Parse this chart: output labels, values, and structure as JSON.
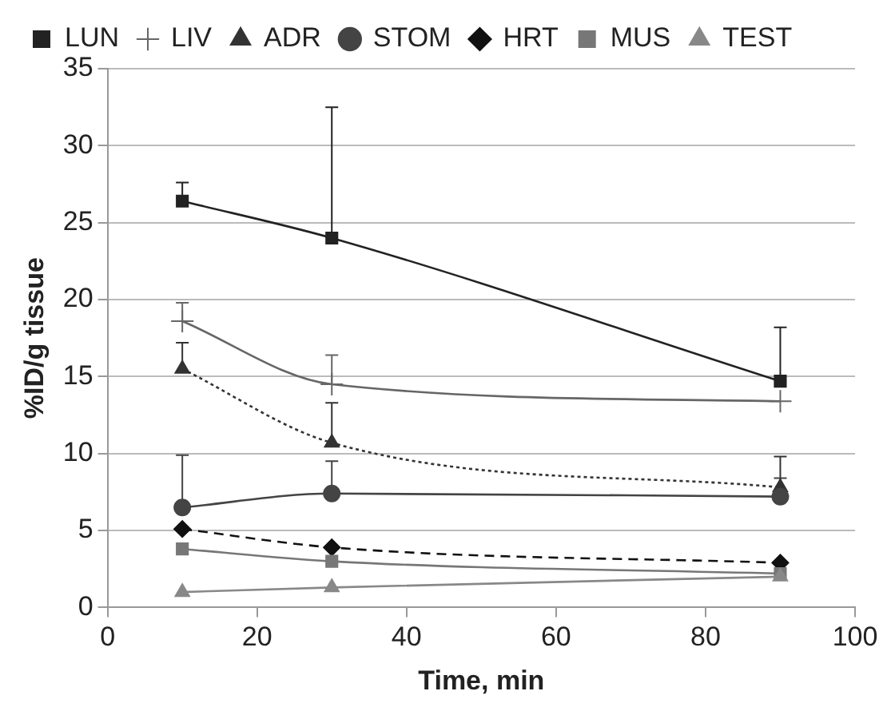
{
  "chart_data": {
    "type": "line",
    "xlabel": "Time, min",
    "ylabel": "%ID/g tissue",
    "x": [
      10,
      30,
      90
    ],
    "xlim": [
      0,
      100
    ],
    "xticks": [
      0,
      20,
      40,
      60,
      80,
      100
    ],
    "ylim": [
      0,
      35
    ],
    "yticks": [
      0,
      5,
      10,
      15,
      20,
      25,
      30,
      35
    ],
    "grid": "y",
    "legend": "top",
    "series": [
      {
        "name": "LUN",
        "color": "#222222",
        "marker": "square",
        "line_style": "solid",
        "values": [
          26.4,
          24.0,
          14.7
        ],
        "errors": [
          [
            26.4,
            27.6
          ],
          [
            24.0,
            32.5
          ],
          [
            14.7,
            18.2
          ]
        ]
      },
      {
        "name": "LIV",
        "color": "#666666",
        "marker": "cross",
        "line_style": "solid",
        "values": [
          18.6,
          14.5,
          13.4
        ],
        "errors": [
          [
            18.6,
            19.8
          ],
          [
            14.5,
            16.4
          ],
          null
        ]
      },
      {
        "name": "ADR",
        "color": "#333333",
        "marker": "triangle",
        "line_style": "dotted",
        "values": [
          15.5,
          10.7,
          7.8
        ],
        "errors": [
          [
            15.5,
            17.2
          ],
          [
            10.7,
            13.3
          ],
          [
            7.8,
            9.8
          ]
        ]
      },
      {
        "name": "STOM",
        "color": "#444444",
        "marker": "circle",
        "line_style": "solid",
        "values": [
          6.5,
          7.4,
          7.2
        ],
        "errors": [
          [
            6.5,
            9.9
          ],
          [
            7.4,
            9.5
          ],
          [
            7.2,
            8.4
          ]
        ]
      },
      {
        "name": "HRT",
        "color": "#111111",
        "marker": "diamond",
        "line_style": "dashed",
        "values": [
          5.1,
          3.9,
          2.9
        ]
      },
      {
        "name": "MUS",
        "color": "#777777",
        "marker": "square",
        "line_style": "solid",
        "values": [
          3.8,
          3.0,
          2.2
        ]
      },
      {
        "name": "TEST",
        "color": "#888888",
        "marker": "triangle",
        "line_style": "solid",
        "values": [
          1.0,
          1.3,
          2.0
        ]
      }
    ]
  }
}
